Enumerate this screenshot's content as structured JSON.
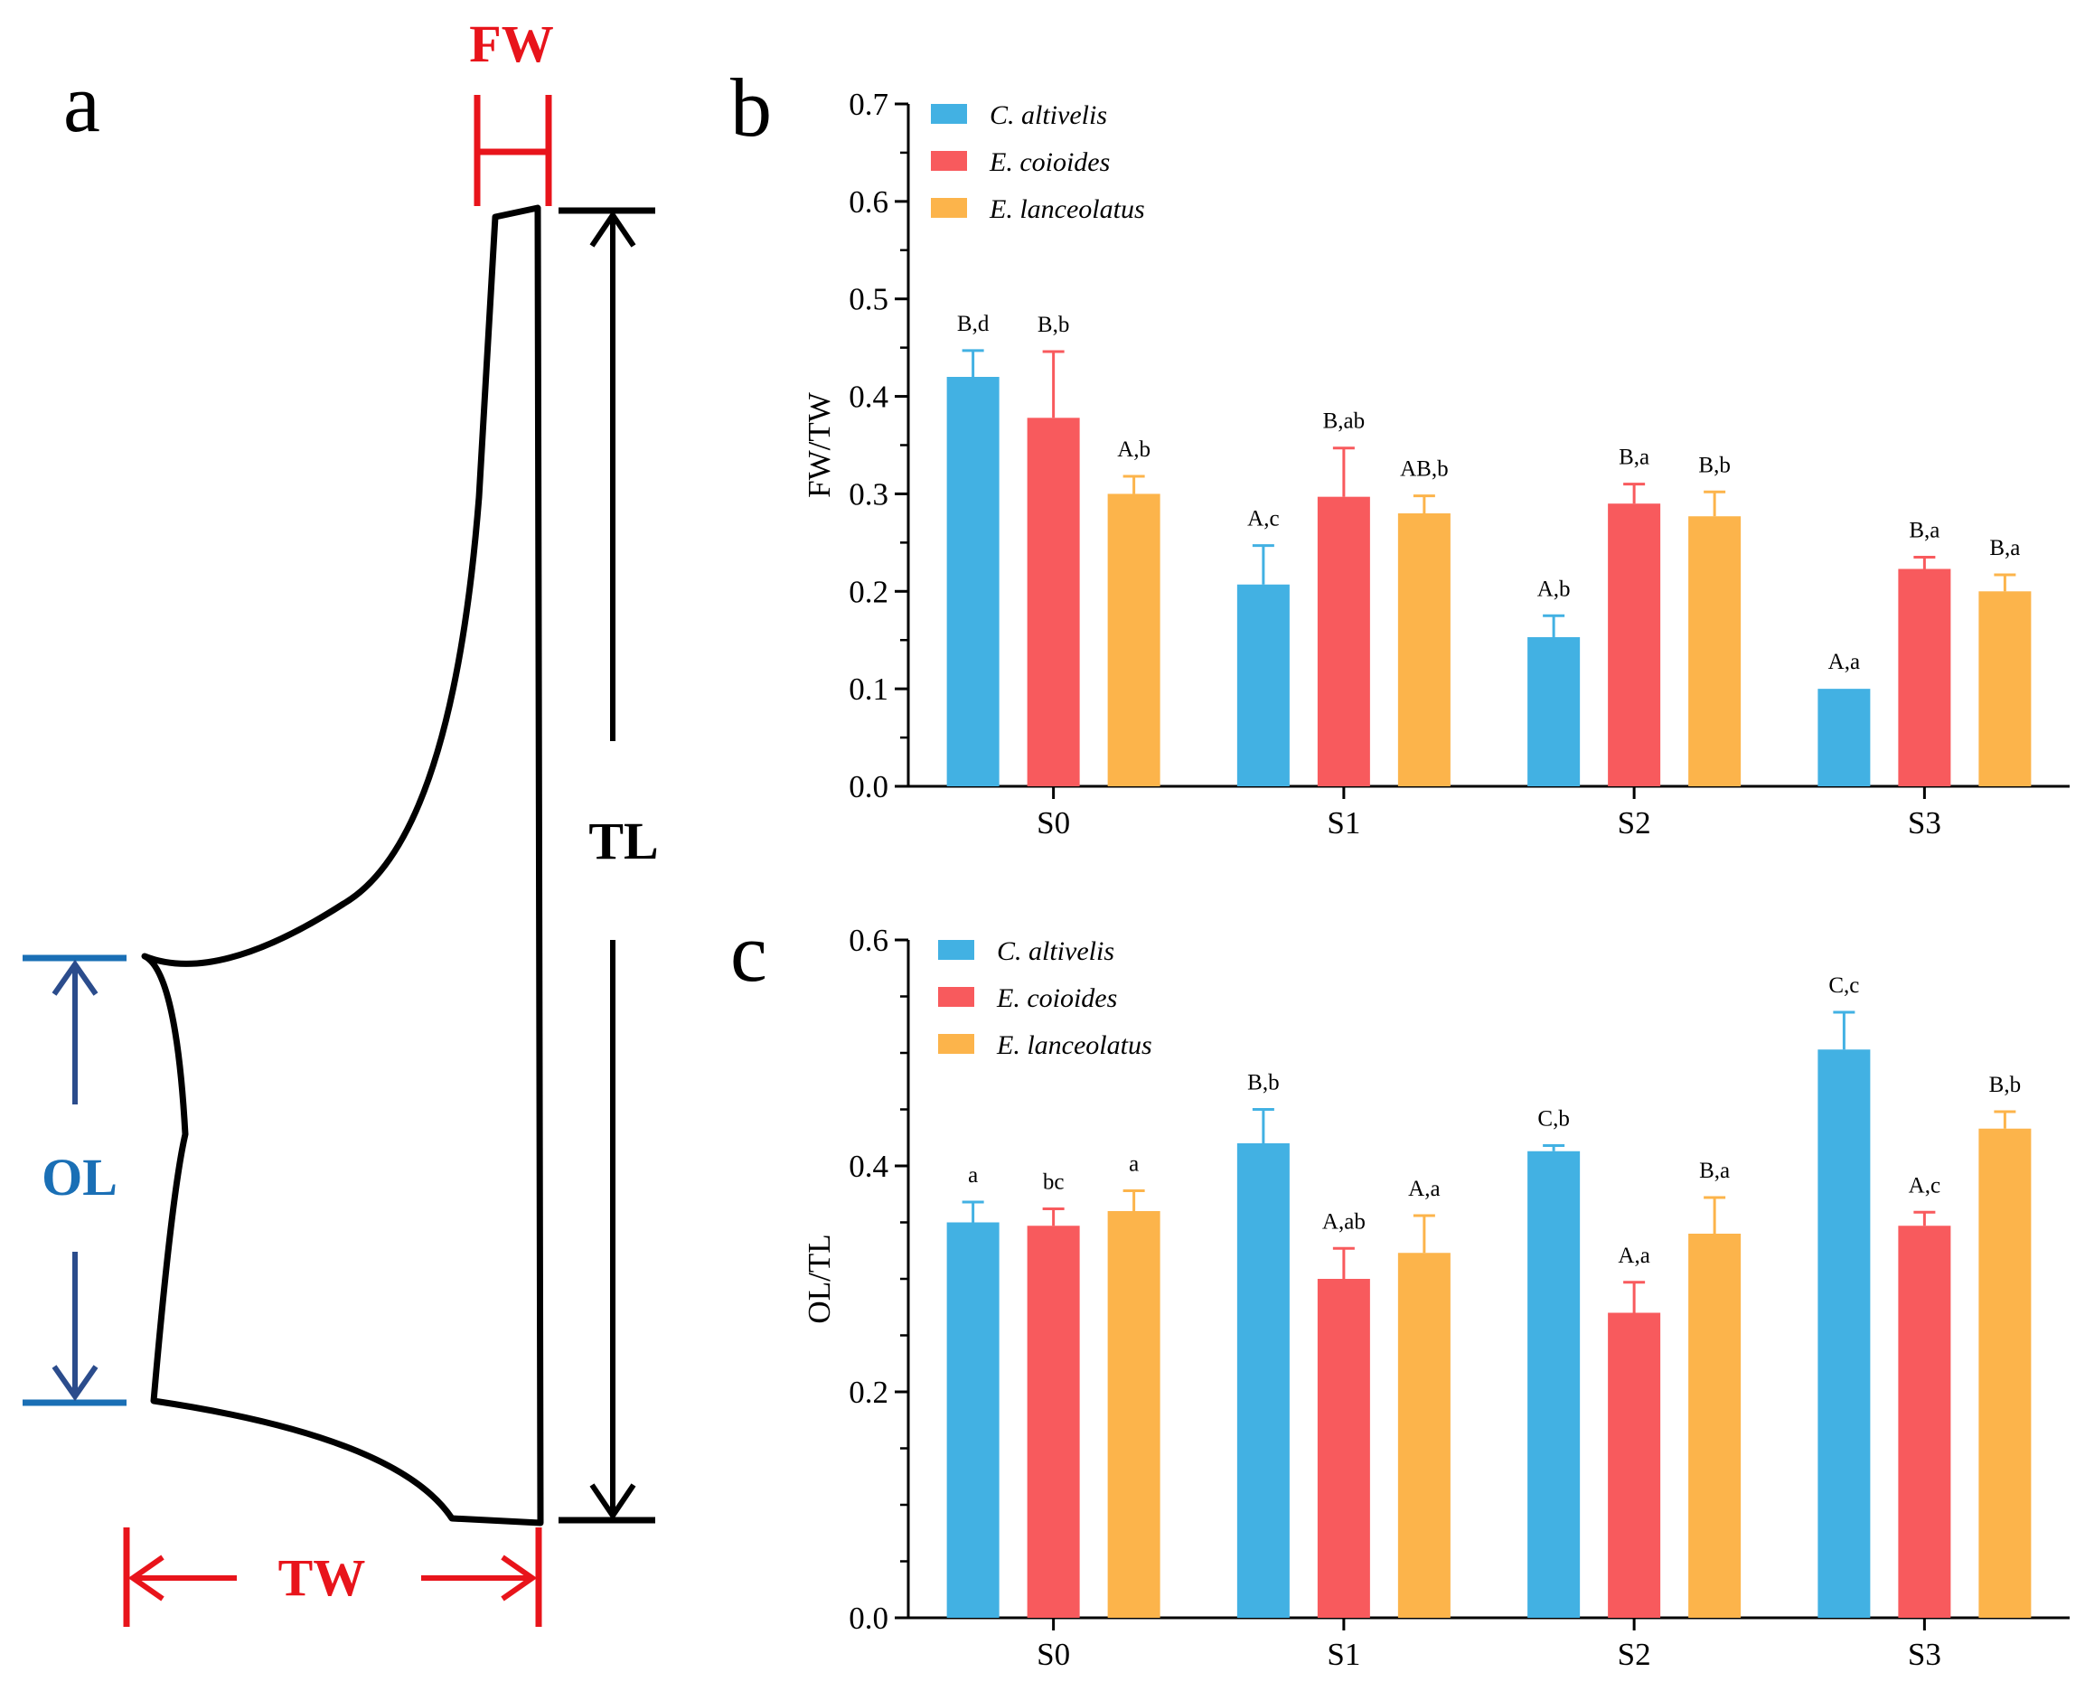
{
  "panel_labels": {
    "a": "a",
    "b": "b",
    "c": "c"
  },
  "diagram": {
    "fw_label": "FW",
    "tl_label": "TL",
    "ol_label": "OL",
    "tw_label": "TW",
    "colors": {
      "outline": "#000000",
      "red": "#e8141b",
      "blue": "#1a6fb5",
      "dark_blue": "#2b4c8c"
    }
  },
  "chart_data": [
    {
      "id": "b",
      "type": "bar",
      "title": "",
      "xlabel": "",
      "ylabel": "FW/TW",
      "ylim": [
        0,
        0.7
      ],
      "yticks": [
        0.0,
        0.1,
        0.2,
        0.3,
        0.4,
        0.5,
        0.6,
        0.7
      ],
      "ytick_labels": [
        "0.0",
        "0.1",
        "0.2",
        "0.3",
        "0.4",
        "0.5",
        "0.6",
        "0.7"
      ],
      "minor_ticks": true,
      "grid": false,
      "legend_position": "top-left",
      "categories": [
        "S0",
        "S1",
        "S2",
        "S3"
      ],
      "series": [
        {
          "name": "C. altivelis",
          "color": "#42b1e3",
          "values": [
            0.42,
            0.207,
            0.153,
            0.1
          ],
          "errors": [
            0.027,
            0.04,
            0.022,
            0.0
          ],
          "labels": [
            "B,d",
            "A,c",
            "A,b",
            "A,a"
          ]
        },
        {
          "name": "E. coioides",
          "color": "#f85a5d",
          "values": [
            0.378,
            0.297,
            0.29,
            0.223
          ],
          "errors": [
            0.068,
            0.05,
            0.02,
            0.012
          ],
          "labels": [
            "B,b",
            "B,ab",
            "B,a",
            "B,a"
          ]
        },
        {
          "name": "E. lanceolatus",
          "color": "#fcb44b",
          "values": [
            0.3,
            0.28,
            0.277,
            0.2
          ],
          "errors": [
            0.018,
            0.018,
            0.025,
            0.017
          ],
          "labels": [
            "A,b",
            "AB,b",
            "B,b",
            "B,a"
          ]
        }
      ]
    },
    {
      "id": "c",
      "type": "bar",
      "title": "",
      "xlabel": "",
      "ylabel": "OL/TL",
      "ylim": [
        0,
        0.6
      ],
      "yticks": [
        0.0,
        0.2,
        0.4,
        0.6
      ],
      "ytick_labels": [
        "0.0",
        "0.2",
        "0.4",
        "0.6"
      ],
      "minor_ticks": true,
      "grid": false,
      "legend_position": "top-left",
      "categories": [
        "S0",
        "S1",
        "S2",
        "S3"
      ],
      "series": [
        {
          "name": "C. altivelis",
          "color": "#42b1e3",
          "values": [
            0.35,
            0.42,
            0.413,
            0.503
          ],
          "errors": [
            0.018,
            0.03,
            0.005,
            0.033
          ],
          "labels": [
            "a",
            "B,b",
            "C,b",
            "C,c"
          ]
        },
        {
          "name": "E. coioides",
          "color": "#f85a5d",
          "values": [
            0.347,
            0.3,
            0.27,
            0.347
          ],
          "errors": [
            0.015,
            0.027,
            0.027,
            0.012
          ],
          "labels": [
            "bc",
            "A,ab",
            "A,a",
            "A,c"
          ]
        },
        {
          "name": "E. lanceolatus",
          "color": "#fcb44b",
          "values": [
            0.36,
            0.323,
            0.34,
            0.433
          ],
          "errors": [
            0.018,
            0.033,
            0.032,
            0.015
          ],
          "labels": [
            "a",
            "A,a",
            "B,a",
            "B,b"
          ]
        }
      ]
    }
  ]
}
